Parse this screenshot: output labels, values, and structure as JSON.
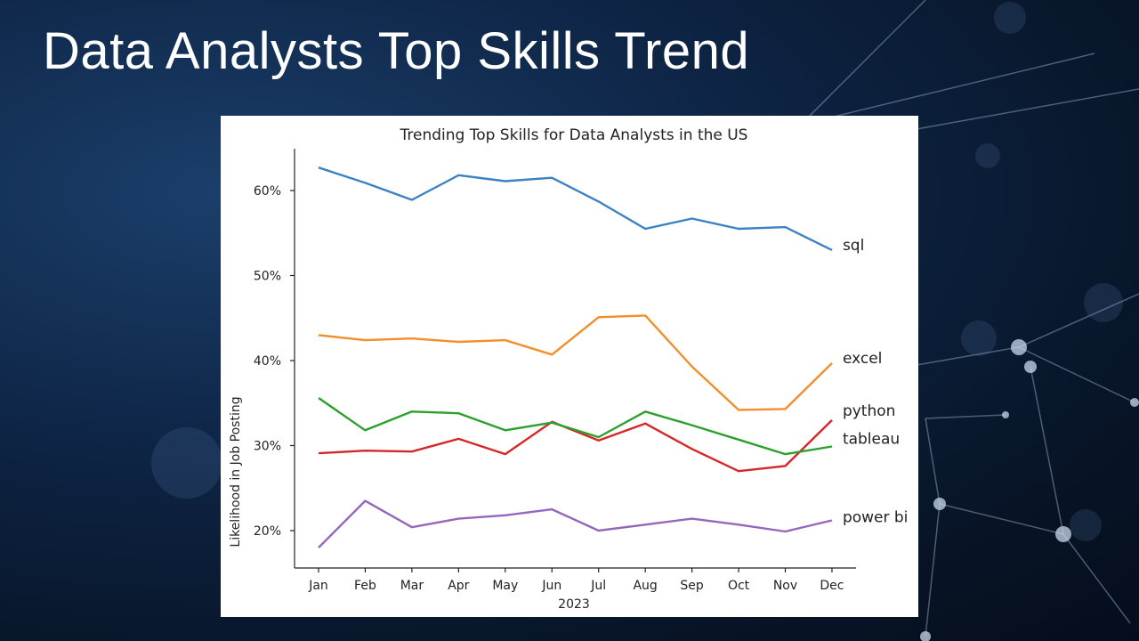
{
  "slide": {
    "title": "Data Analysts Top Skills Trend"
  },
  "colors": {
    "sql": "#3b82c4",
    "excel": "#f28e2b",
    "python": "#d62728",
    "tableau": "#2ca02c",
    "power_bi": "#9467bd"
  },
  "chart_data": {
    "type": "line",
    "title": "Trending Top Skills for Data Analysts in the US",
    "xlabel": "2023",
    "ylabel": "Likelihood in Job Posting",
    "categories": [
      "Jan",
      "Feb",
      "Mar",
      "Apr",
      "May",
      "Jun",
      "Jul",
      "Aug",
      "Sep",
      "Oct",
      "Nov",
      "Dec"
    ],
    "ylim": [
      15,
      65
    ],
    "yticks": [
      20,
      30,
      40,
      50,
      60
    ],
    "ytick_labels": [
      "20%",
      "30%",
      "40%",
      "50%",
      "60%"
    ],
    "grid": false,
    "legend": "inline labels at line ends",
    "series": [
      {
        "name": "sql",
        "color": "#3b82c4",
        "values": [
          62.7,
          60.9,
          58.9,
          61.8,
          61.1,
          61.5,
          58.7,
          55.5,
          56.7,
          55.5,
          55.7,
          53.0
        ]
      },
      {
        "name": "excel",
        "color": "#f28e2b",
        "values": [
          43.0,
          42.4,
          42.6,
          42.2,
          42.4,
          40.7,
          45.1,
          45.3,
          39.3,
          34.2,
          34.3,
          39.7
        ]
      },
      {
        "name": "python",
        "color": "#d62728",
        "values": [
          29.1,
          29.4,
          29.3,
          30.8,
          29.0,
          32.8,
          30.6,
          32.6,
          29.6,
          27.0,
          27.6,
          33.0
        ]
      },
      {
        "name": "tableau",
        "color": "#2ca02c",
        "values": [
          35.6,
          31.8,
          34.0,
          33.8,
          31.8,
          32.7,
          31.0,
          34.0,
          32.4,
          30.7,
          29.0,
          29.9
        ]
      },
      {
        "name": "power bi",
        "color": "#9467bd",
        "values": [
          18.0,
          23.5,
          20.4,
          21.4,
          21.8,
          22.5,
          20.0,
          20.7,
          21.4,
          20.7,
          19.9,
          21.2
        ]
      }
    ]
  }
}
